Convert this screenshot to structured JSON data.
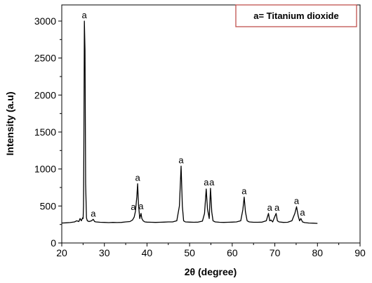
{
  "chart_data": {
    "type": "line",
    "title": "",
    "xlabel": "2θ (degree)",
    "ylabel": "Intensity (a.u)",
    "xlim": [
      20,
      90
    ],
    "ylim": [
      0,
      3250
    ],
    "xticks": [
      20,
      30,
      40,
      50,
      60,
      70,
      80,
      90
    ],
    "yticks": [
      0,
      500,
      1000,
      1500,
      2000,
      2500,
      3000
    ],
    "grid": false,
    "legend": {
      "text": "a= Titanium dioxide",
      "placement": "top-right",
      "border_color": "#c0504d"
    },
    "series": [
      {
        "color": "#000000",
        "x": [
          20.0,
          21.0,
          22.0,
          23.0,
          23.5,
          24.0,
          24.3,
          24.6,
          24.9,
          25.0,
          25.1,
          25.2,
          25.3,
          25.45,
          25.6,
          25.8,
          26.0,
          26.4,
          27.0,
          27.4,
          27.7,
          28.0,
          29.0,
          30.0,
          31.0,
          32.0,
          33.0,
          34.0,
          35.0,
          36.0,
          36.6,
          37.0,
          37.3,
          37.6,
          37.8,
          38.0,
          38.3,
          38.6,
          38.8,
          39.1,
          39.5,
          40.0,
          41.0,
          42.0,
          43.0,
          44.0,
          45.0,
          46.0,
          47.0,
          47.6,
          48.0,
          48.3,
          48.6,
          49.0,
          50.0,
          51.0,
          52.0,
          53.0,
          53.5,
          53.9,
          54.2,
          54.6,
          54.9,
          55.2,
          55.5,
          56.0,
          57.0,
          58.0,
          59.0,
          60.0,
          61.0,
          62.0,
          62.5,
          62.8,
          63.1,
          63.5,
          64.0,
          65.0,
          66.0,
          67.0,
          68.0,
          68.5,
          68.8,
          69.1,
          69.5,
          70.0,
          70.3,
          70.6,
          71.0,
          72.0,
          73.0,
          74.0,
          74.7,
          75.1,
          75.5,
          75.8,
          76.1,
          76.5,
          77.0,
          78.0,
          79.0,
          80.0
        ],
        "y": [
          270,
          272,
          276,
          285,
          300,
          290,
          330,
          300,
          340,
          330,
          500,
          1500,
          3000,
          2600,
          800,
          340,
          300,
          290,
          300,
          320,
          290,
          285,
          280,
          278,
          275,
          278,
          276,
          278,
          285,
          290,
          310,
          350,
          430,
          620,
          800,
          520,
          330,
          400,
          330,
          300,
          285,
          282,
          280,
          278,
          280,
          282,
          285,
          285,
          300,
          500,
          1040,
          500,
          300,
          285,
          282,
          280,
          282,
          295,
          400,
          730,
          460,
          330,
          740,
          420,
          300,
          285,
          280,
          278,
          280,
          282,
          285,
          300,
          450,
          620,
          420,
          300,
          285,
          280,
          280,
          282,
          300,
          400,
          300,
          310,
          285,
          360,
          400,
          300,
          285,
          278,
          280,
          300,
          400,
          490,
          360,
          300,
          330,
          285,
          275,
          270,
          268,
          265
        ]
      }
    ],
    "peak_labels": [
      {
        "text": "a",
        "x": 25.3,
        "y": 3000
      },
      {
        "text": "a",
        "x": 27.4,
        "y": 320
      },
      {
        "text": "a",
        "x": 36.8,
        "y": 410
      },
      {
        "text": "a",
        "x": 37.8,
        "y": 800
      },
      {
        "text": "a",
        "x": 38.6,
        "y": 420
      },
      {
        "text": "a",
        "x": 48.0,
        "y": 1040
      },
      {
        "text": "a",
        "x": 53.9,
        "y": 740
      },
      {
        "text": "a",
        "x": 55.2,
        "y": 740
      },
      {
        "text": "a",
        "x": 62.8,
        "y": 620
      },
      {
        "text": "a",
        "x": 68.8,
        "y": 400
      },
      {
        "text": "a",
        "x": 70.5,
        "y": 400
      },
      {
        "text": "a",
        "x": 75.1,
        "y": 490
      },
      {
        "text": "a",
        "x": 76.5,
        "y": 330
      }
    ]
  }
}
